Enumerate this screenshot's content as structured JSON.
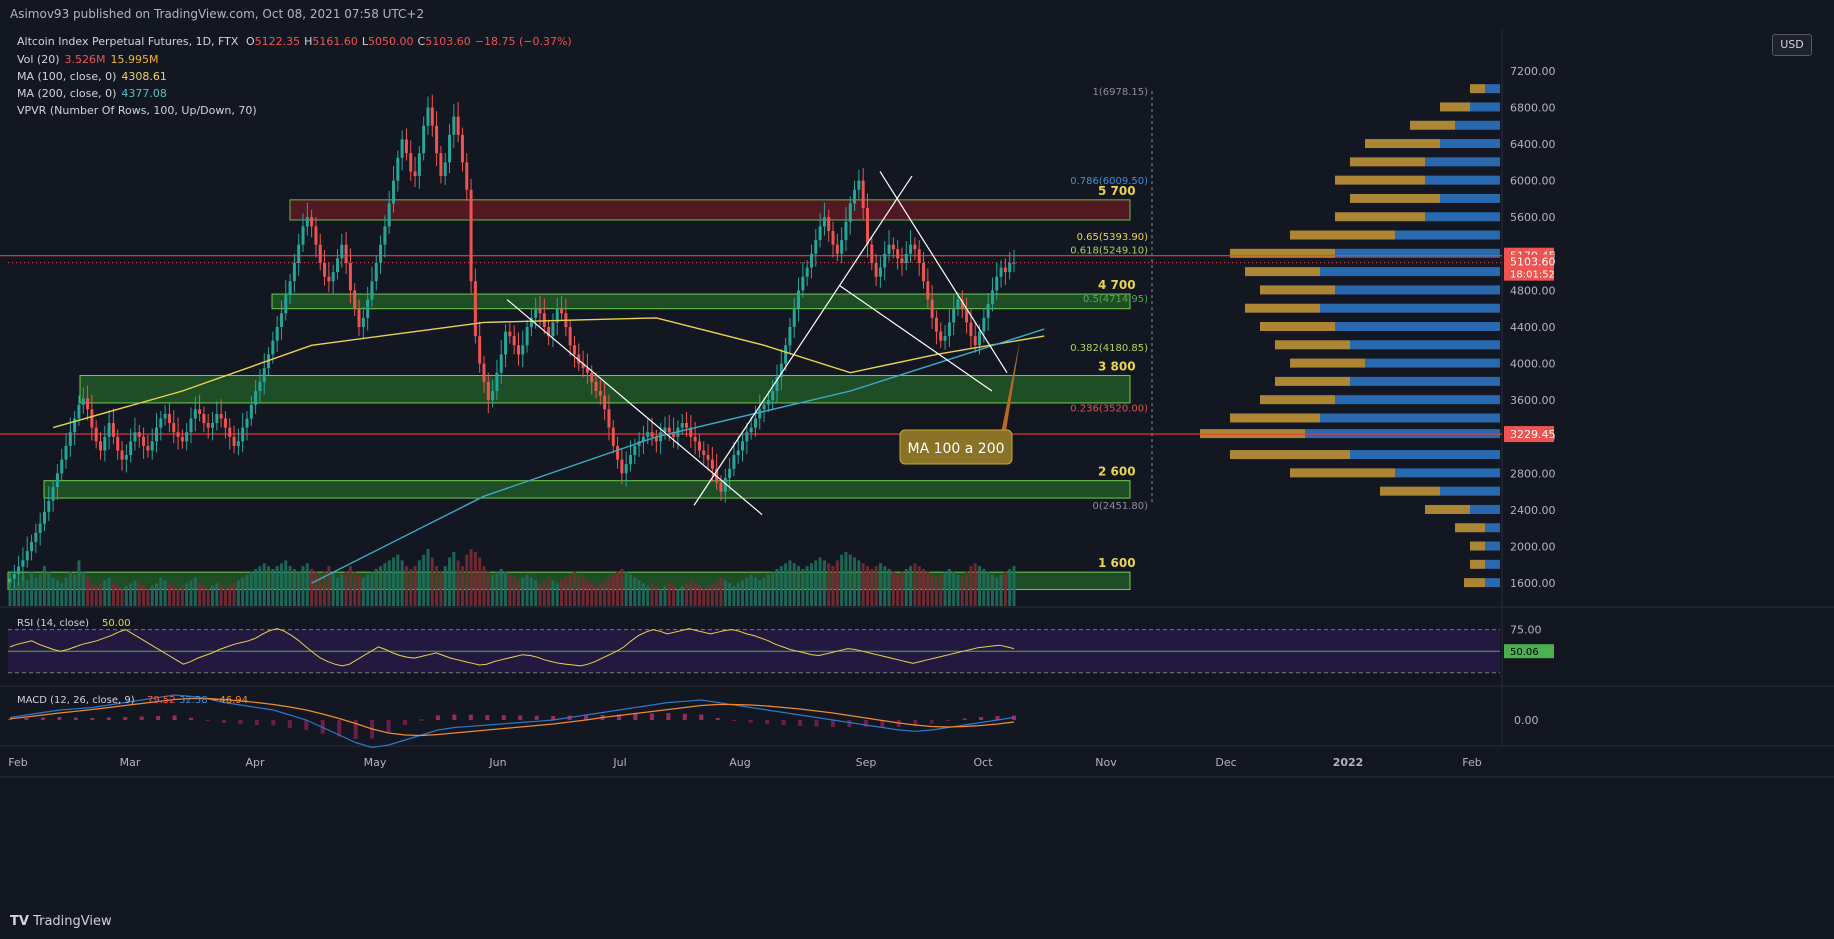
{
  "header": {
    "publisher": "Asimov93 published on TradingView.com, Oct 08, 2021 07:58 UTC+2",
    "symbol_title": "Altcoin Index Perpetual Futures, 1D, FTX",
    "ohlc": [
      {
        "label": "O",
        "value": "5122.35"
      },
      {
        "label": "H",
        "value": "5161.60"
      },
      {
        "label": "L",
        "value": "5050.00"
      },
      {
        "label": "C",
        "value": "5103.60"
      },
      {
        "label": "",
        "value": "−18.75 (−0.37%)"
      }
    ]
  },
  "indicators": [
    {
      "name": "Vol (20)",
      "values": [
        "3.526M",
        "15.995M"
      ],
      "colors": [
        "#ef5350",
        "#f0b429"
      ]
    },
    {
      "name": "MA (100, close, 0)",
      "values": [
        "4308.61"
      ],
      "colors": [
        "#f0d060"
      ]
    },
    {
      "name": "MA (200, close, 0)",
      "values": [
        "4377.08"
      ],
      "colors": [
        "#4fc3c3"
      ]
    },
    {
      "name": "VPVR (Number Of Rows, 100, Up/Down, 70)",
      "values": [],
      "colors": []
    }
  ],
  "currency_button": "USD",
  "colors": {
    "bg": "#131722",
    "grid": "#1f2430",
    "up": "#26a69a",
    "down": "#ef5350",
    "ma100": "#e8d44d",
    "ma200": "#3fa9c9",
    "zone_green": "#2a7a2a",
    "zone_red": "#5a1a24",
    "vpvr_up": "#2d78c8",
    "vpvr_down": "#c99a38",
    "rsi": "#e8d44d",
    "macd": "#2d78c8",
    "signal": "#f08c2c"
  },
  "chart_data": {
    "type": "candlestick",
    "y_axis": {
      "min": 1350,
      "max": 7450,
      "ticks": [
        "7200.00",
        "6800.00",
        "6400.00",
        "6000.00",
        "5600.00",
        "5200.00",
        "4800.00",
        "4400.00",
        "4000.00",
        "3600.00",
        "3200.00",
        "2800.00",
        "2400.00",
        "2000.00",
        "1600.00"
      ]
    },
    "x_axis": {
      "labels": [
        "Feb",
        "Mar",
        "Apr",
        "May",
        "Jun",
        "Jul",
        "Aug",
        "Sep",
        "Oct",
        "Nov",
        "Dec",
        "2022",
        "Feb"
      ]
    },
    "price_tags": [
      {
        "label": "5179.45",
        "value": 5179.45,
        "color": "#ef5350"
      },
      {
        "label": "5103.60",
        "sub": "18:01:52",
        "value": 5103.6,
        "color": "#ef5350"
      },
      {
        "label": "3229.45",
        "value": 3229.45,
        "color": "#ef5350"
      }
    ],
    "horizontal_lines": [
      {
        "value": 5179.45,
        "color": "#ef3b3b"
      },
      {
        "value": 3229.45,
        "color": "#ef3b3b"
      }
    ],
    "fib_levels": [
      {
        "label": "1(6978.15)",
        "value": 6978.15,
        "color": "#8a8e99"
      },
      {
        "label": "0.786(6009.50)",
        "value": 6009.5,
        "color": "#3d8fdb"
      },
      {
        "label": "0.65(5393.90)",
        "value": 5393.9,
        "color": "#e8d44d"
      },
      {
        "label": "0.618(5249.10)",
        "value": 5249.1,
        "color": "#a4d65e"
      },
      {
        "label": "0.5(4714.95)",
        "value": 4714.95,
        "color": "#4caf50"
      },
      {
        "label": "0.382(4180.85)",
        "value": 4180.85,
        "color": "#b5d35a"
      },
      {
        "label": "0.236(3520.00)",
        "value": 3520.0,
        "color": "#d9534f"
      },
      {
        "label": "0(2451.80)",
        "value": 2451.8,
        "color": "#8a8e99"
      }
    ],
    "zones": [
      {
        "label": "5 700",
        "from": 5570,
        "to": 5790,
        "kind": "red"
      },
      {
        "label": "4 700",
        "from": 4600,
        "to": 4760,
        "kind": "green"
      },
      {
        "label": "3 800",
        "from": 3570,
        "to": 3870,
        "kind": "green"
      },
      {
        "label": "2 600",
        "from": 2530,
        "to": 2720,
        "kind": "green"
      },
      {
        "label": "1 600",
        "from": 1530,
        "to": 1720,
        "kind": "green"
      }
    ],
    "annotation": {
      "text": "MA 100 a 200"
    },
    "candles_close": [
      1650,
      1700,
      1780,
      1850,
      1950,
      2050,
      2150,
      2250,
      2380,
      2500,
      2650,
      2800,
      2950,
      3100,
      3250,
      3400,
      3550,
      3620,
      3500,
      3300,
      3150,
      3050,
      3200,
      3350,
      3200,
      3050,
      2950,
      3000,
      3150,
      3250,
      3200,
      3100,
      3050,
      3150,
      3300,
      3400,
      3450,
      3350,
      3250,
      3200,
      3150,
      3250,
      3400,
      3500,
      3450,
      3350,
      3300,
      3350,
      3450,
      3400,
      3300,
      3200,
      3100,
      3150,
      3300,
      3400,
      3550,
      3700,
      3800,
      3950,
      4100,
      4250,
      4400,
      4550,
      4750,
      4900,
      5100,
      5300,
      5500,
      5600,
      5500,
      5300,
      5100,
      4950,
      4900,
      5000,
      5150,
      5300,
      5100,
      4800,
      4600,
      4400,
      4500,
      4700,
      4900,
      5100,
      5300,
      5500,
      5750,
      6000,
      6250,
      6450,
      6300,
      6100,
      6050,
      6300,
      6600,
      6800,
      6600,
      6300,
      6050,
      6200,
      6500,
      6700,
      6500,
      6200,
      5900,
      4900,
      4300,
      4000,
      3800,
      3600,
      3700,
      3900,
      4100,
      4350,
      4300,
      4200,
      4100,
      4200,
      4400,
      4500,
      4600,
      4550,
      4400,
      4300,
      4450,
      4600,
      4550,
      4400,
      4200,
      4100,
      4000,
      3950,
      3900,
      3800,
      3700,
      3650,
      3500,
      3300,
      3100,
      2950,
      2800,
      2900,
      3000,
      3100,
      3150,
      3200,
      3250,
      3200,
      3150,
      3250,
      3300,
      3250,
      3200,
      3300,
      3350,
      3300,
      3200,
      3150,
      3050,
      3000,
      2950,
      2850,
      2700,
      2600,
      2750,
      2850,
      3000,
      3050,
      3150,
      3250,
      3300,
      3400,
      3500,
      3550,
      3600,
      3700,
      3850,
      4000,
      4200,
      4400,
      4600,
      4800,
      4950,
      5050,
      5200,
      5350,
      5500,
      5600,
      5450,
      5300,
      5200,
      5350,
      5550,
      5750,
      5900,
      6000,
      5700,
      5300,
      5100,
      4950,
      5050,
      5200,
      5300,
      5250,
      5150,
      5100,
      5200,
      5300,
      5250,
      5100,
      4900,
      4700,
      4500,
      4350,
      4250,
      4300,
      4450,
      4600,
      4700,
      4600,
      4450,
      4300,
      4200,
      4350,
      4500,
      4650,
      4800,
      4950,
      5050,
      5000,
      5100,
      5103.6
    ],
    "ma100_points": [
      [
        10,
        3300
      ],
      [
        40,
        3700
      ],
      [
        70,
        4200
      ],
      [
        110,
        4450
      ],
      [
        150,
        4500
      ],
      [
        175,
        4200
      ],
      [
        195,
        3900
      ],
      [
        215,
        4100
      ],
      [
        240,
        4300
      ]
    ],
    "ma200_points": [
      [
        70,
        1600
      ],
      [
        110,
        2550
      ],
      [
        150,
        3200
      ],
      [
        195,
        3700
      ],
      [
        240,
        4377
      ]
    ],
    "volume_relative": [
      0.3,
      0.35,
      0.4,
      0.5,
      0.45,
      0.6,
      0.5,
      0.55,
      0.7,
      0.6,
      0.5,
      0.45,
      0.4,
      0.5,
      0.6,
      0.55,
      0.8,
      0.6,
      0.5,
      0.4,
      0.35,
      0.4,
      0.45,
      0.5,
      0.4,
      0.35,
      0.3,
      0.35,
      0.4,
      0.45,
      0.4,
      0.35,
      0.3,
      0.35,
      0.4,
      0.5,
      0.45,
      0.4,
      0.35,
      0.3,
      0.35,
      0.4,
      0.45,
      0.5,
      0.4,
      0.35,
      0.3,
      0.35,
      0.4,
      0.35,
      0.3,
      0.35,
      0.4,
      0.45,
      0.5,
      0.55,
      0.6,
      0.65,
      0.7,
      0.75,
      0.7,
      0.65,
      0.7,
      0.75,
      0.8,
      0.7,
      0.65,
      0.6,
      0.7,
      0.75,
      0.65,
      0.6,
      0.55,
      0.6,
      0.7,
      0.6,
      0.5,
      0.55,
      0.6,
      0.7,
      0.6,
      0.55,
      0.5,
      0.55,
      0.6,
      0.65,
      0.7,
      0.75,
      0.8,
      0.85,
      0.9,
      0.8,
      0.7,
      0.65,
      0.7,
      0.8,
      0.9,
      1.0,
      0.85,
      0.7,
      0.6,
      0.7,
      0.85,
      0.95,
      0.8,
      0.7,
      0.9,
      1.0,
      0.95,
      0.85,
      0.7,
      0.6,
      0.55,
      0.6,
      0.65,
      0.6,
      0.55,
      0.5,
      0.45,
      0.5,
      0.55,
      0.5,
      0.45,
      0.4,
      0.45,
      0.5,
      0.45,
      0.4,
      0.45,
      0.5,
      0.55,
      0.6,
      0.55,
      0.5,
      0.45,
      0.4,
      0.35,
      0.4,
      0.45,
      0.5,
      0.55,
      0.6,
      0.65,
      0.6,
      0.55,
      0.5,
      0.45,
      0.4,
      0.35,
      0.4,
      0.35,
      0.3,
      0.35,
      0.4,
      0.35,
      0.3,
      0.35,
      0.4,
      0.45,
      0.4,
      0.35,
      0.3,
      0.35,
      0.4,
      0.45,
      0.5,
      0.45,
      0.4,
      0.35,
      0.4,
      0.45,
      0.5,
      0.55,
      0.5,
      0.45,
      0.5,
      0.55,
      0.6,
      0.65,
      0.7,
      0.75,
      0.8,
      0.75,
      0.7,
      0.65,
      0.7,
      0.75,
      0.8,
      0.85,
      0.8,
      0.75,
      0.7,
      0.8,
      0.9,
      0.95,
      0.9,
      0.85,
      0.8,
      0.75,
      0.7,
      0.65,
      0.7,
      0.75,
      0.7,
      0.65,
      0.6,
      0.55,
      0.6,
      0.65,
      0.7,
      0.75,
      0.7,
      0.65,
      0.6,
      0.55,
      0.5,
      0.55,
      0.6,
      0.65,
      0.6,
      0.55,
      0.5,
      0.6,
      0.7,
      0.75,
      0.7,
      0.65,
      0.6,
      0.55,
      0.5,
      0.55,
      0.6,
      0.65,
      0.7,
      0.65,
      0.6,
      0.55,
      0.6,
      0.65,
      0.55,
      0.5
    ],
    "vpvr_profile": [
      [
        7000,
        0.1,
        0.05
      ],
      [
        6800,
        0.2,
        0.1
      ],
      [
        6600,
        0.3,
        0.15
      ],
      [
        6400,
        0.45,
        0.2
      ],
      [
        6200,
        0.5,
        0.25
      ],
      [
        6000,
        0.55,
        0.25
      ],
      [
        5800,
        0.5,
        0.2
      ],
      [
        5600,
        0.55,
        0.25
      ],
      [
        5400,
        0.7,
        0.35
      ],
      [
        5200,
        0.9,
        0.55
      ],
      [
        5000,
        0.85,
        0.6
      ],
      [
        4800,
        0.8,
        0.55
      ],
      [
        4600,
        0.85,
        0.6
      ],
      [
        4400,
        0.8,
        0.55
      ],
      [
        4200,
        0.75,
        0.5
      ],
      [
        4000,
        0.7,
        0.45
      ],
      [
        3800,
        0.75,
        0.5
      ],
      [
        3600,
        0.8,
        0.55
      ],
      [
        3400,
        0.9,
        0.6
      ],
      [
        3229,
        1.0,
        0.65
      ],
      [
        3000,
        0.9,
        0.5
      ],
      [
        2800,
        0.7,
        0.35
      ],
      [
        2600,
        0.4,
        0.2
      ],
      [
        2400,
        0.25,
        0.1
      ],
      [
        2200,
        0.15,
        0.05
      ],
      [
        2000,
        0.1,
        0.05
      ],
      [
        1800,
        0.1,
        0.05
      ],
      [
        1600,
        0.12,
        0.05
      ]
    ],
    "rsi": {
      "label": "RSI (14, close)",
      "value": "50.00",
      "tag": "50.06",
      "upper": "75.00",
      "upper_value": 75,
      "lower_value": 25,
      "mid_value": 50,
      "series": [
        55,
        58,
        60,
        62,
        58,
        55,
        52,
        50,
        52,
        55,
        58,
        60,
        62,
        65,
        68,
        72,
        75,
        70,
        65,
        60,
        55,
        50,
        45,
        40,
        35,
        38,
        42,
        45,
        48,
        52,
        55,
        58,
        60,
        62,
        65,
        70,
        74,
        76,
        73,
        68,
        62,
        55,
        48,
        42,
        38,
        35,
        33,
        35,
        40,
        45,
        50,
        55,
        52,
        48,
        45,
        43,
        42,
        44,
        46,
        48,
        45,
        42,
        40,
        38,
        36,
        34,
        35,
        38,
        40,
        42,
        44,
        46,
        45,
        43,
        40,
        38,
        36,
        35,
        34,
        33,
        35,
        38,
        42,
        46,
        50,
        55,
        62,
        68,
        72,
        75,
        73,
        70,
        72,
        74,
        76,
        74,
        72,
        70,
        72,
        74,
        75,
        73,
        70,
        68,
        65,
        62,
        58,
        55,
        52,
        50,
        48,
        46,
        45,
        47,
        49,
        51,
        53,
        52,
        50,
        48,
        46,
        44,
        42,
        40,
        38,
        36,
        38,
        40,
        42,
        44,
        46,
        48,
        50,
        52,
        54,
        55,
        56,
        57,
        55,
        53
      ]
    },
    "macd": {
      "label": "MACD (12, 26, close, 9)",
      "values": [
        "79.52",
        "32.58",
        "−46.94"
      ],
      "zero": "0.00",
      "macd_series": [
        10,
        20,
        30,
        40,
        45,
        50,
        60,
        70,
        80,
        90,
        100,
        95,
        85,
        70,
        60,
        50,
        40,
        20,
        0,
        -30,
        -60,
        -90,
        -110,
        -100,
        -80,
        -60,
        -40,
        -30,
        -25,
        -20,
        -15,
        -10,
        -5,
        0,
        10,
        20,
        30,
        40,
        50,
        60,
        70,
        75,
        80,
        70,
        60,
        50,
        40,
        30,
        20,
        10,
        0,
        -10,
        -20,
        -30,
        -40,
        -45,
        -40,
        -30,
        -20,
        -10,
        0,
        10
      ],
      "signal_series": [
        5,
        12,
        20,
        28,
        35,
        42,
        50,
        58,
        66,
        74,
        82,
        86,
        86,
        82,
        76,
        70,
        62,
        52,
        40,
        24,
        6,
        -14,
        -36,
        -52,
        -60,
        -62,
        -58,
        -52,
        -46,
        -40,
        -34,
        -28,
        -22,
        -16,
        -8,
        0,
        10,
        18,
        26,
        34,
        42,
        50,
        58,
        62,
        62,
        60,
        56,
        50,
        44,
        36,
        28,
        18,
        8,
        -2,
        -12,
        -20,
        -26,
        -28,
        -26,
        -22,
        -16,
        -8
      ]
    }
  },
  "footer": {
    "brand": "TradingView"
  }
}
